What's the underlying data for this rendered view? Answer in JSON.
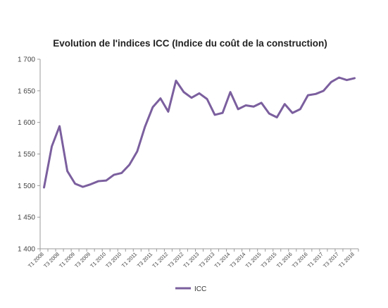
{
  "chart_data": {
    "type": "line",
    "title": "Evolution de l'indices ICC (Indice du coût de la construction)",
    "xlabel": "",
    "ylabel": "",
    "ylim": [
      1400,
      1700
    ],
    "yticks": [
      "1 400",
      "1 450",
      "1 500",
      "1 550",
      "1 600",
      "1 650",
      "1 700"
    ],
    "ytick_values": [
      1400,
      1450,
      1500,
      1550,
      1600,
      1650,
      1700
    ],
    "categories": [
      "T1 2008",
      "T2 2008",
      "T3 2008",
      "T4 2008",
      "T1 2009",
      "T2 2009",
      "T3 2009",
      "T4 2009",
      "T1 2010",
      "T2 2010",
      "T3 2010",
      "T4 2010",
      "T1 2011",
      "T2 2011",
      "T3 2011",
      "T4 2011",
      "T1 2012",
      "T2 2012",
      "T3 2012",
      "T4 2012",
      "T1 2013",
      "T2 2013",
      "T3 2013",
      "T4 2013",
      "T1 2014",
      "T2 2014",
      "T3 2014",
      "T4 2014",
      "T1 2015",
      "T2 2015",
      "T3 2015",
      "T4 2015",
      "T1 2016",
      "T2 2016",
      "T3 2016",
      "T4 2016",
      "T1 2017",
      "T2 2017",
      "T3 2017",
      "T4 2017",
      "T1 2018"
    ],
    "x_tick_labels": [
      "T1 2008",
      "T3 2008",
      "T1 2009",
      "T3 2009",
      "T1 2010",
      "T3 2010",
      "T1 2011",
      "T3 2011",
      "T1 2012",
      "T3 2012",
      "T1 2013",
      "T3 2013",
      "T1 2014",
      "T3 2014",
      "T1 2015",
      "T3 2015",
      "T1 2016",
      "T3 2016",
      "T1 2017",
      "T3 2017",
      "T1 2018"
    ],
    "series": [
      {
        "name": "ICC",
        "color": "#7b5f9e",
        "values": [
          1497,
          1562,
          1594,
          1523,
          1503,
          1498,
          1502,
          1507,
          1508,
          1517,
          1520,
          1533,
          1554,
          1593,
          1624,
          1638,
          1617,
          1666,
          1648,
          1639,
          1646,
          1637,
          1612,
          1615,
          1648,
          1621,
          1627,
          1625,
          1631,
          1614,
          1608,
          1629,
          1615,
          1621,
          1643,
          1645,
          1650,
          1664,
          1671,
          1667,
          1670
        ]
      }
    ],
    "grid": {
      "horizontal": false,
      "vertical": false
    },
    "legend": {
      "position": "bottom"
    }
  }
}
